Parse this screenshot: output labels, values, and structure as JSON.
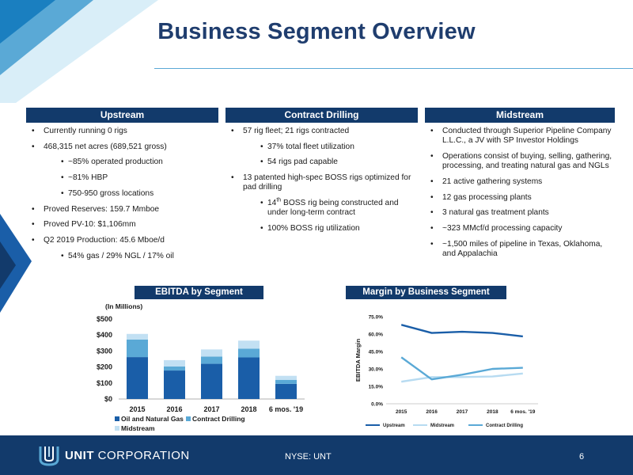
{
  "title": "Business Segment Overview",
  "colors": {
    "navy": "#123a6b",
    "accent": "#1a5ea8",
    "light": "#5aa9d6",
    "pale": "#b7dbf1"
  },
  "columns": [
    {
      "header": "Upstream",
      "bullets": [
        {
          "level": 1,
          "text": "Currently running 0 rigs"
        },
        {
          "level": 1,
          "text": "468,315 net acres (689,521 gross)"
        },
        {
          "level": 2,
          "text": "~85% operated production"
        },
        {
          "level": 2,
          "text": "~81% HBP"
        },
        {
          "level": 2,
          "text": "750-950 gross locations"
        },
        {
          "level": 1,
          "text": "Proved Reserves: 159.7 Mmboe"
        },
        {
          "level": 1,
          "text": "Proved PV-10: $1,106mm"
        },
        {
          "level": 1,
          "text": "Q2 2019 Production: 45.6 Mboe/d"
        },
        {
          "level": 2,
          "text": "54% gas / 29% NGL / 17% oil"
        }
      ]
    },
    {
      "header": "Contract Drilling",
      "bullets": [
        {
          "level": 1,
          "text": "57 rig fleet; 21 rigs contracted"
        },
        {
          "level": 2,
          "text": "37% total fleet utilization"
        },
        {
          "level": 2,
          "text": "54 rigs pad capable"
        },
        {
          "level": 1,
          "text": "13 patented high-spec BOSS rigs optimized for pad drilling"
        },
        {
          "level": 2,
          "pre": "14",
          "sup": "th",
          "text": " BOSS rig being constructed and under long-term contract"
        },
        {
          "level": 2,
          "text": "100% BOSS rig utilization"
        }
      ]
    },
    {
      "header": "Midstream",
      "bullets": [
        {
          "level": 1,
          "text": "Conducted through Superior Pipeline Company L.L.C., a JV with SP Investor Holdings"
        },
        {
          "level": 1,
          "text": "Operations consist of buying, selling, gathering, processing, and treating natural gas and NGLs"
        },
        {
          "level": 1,
          "text": "21 active gathering systems"
        },
        {
          "level": 1,
          "text": "12 gas processing plants"
        },
        {
          "level": 1,
          "text": "3 natural gas treatment plants"
        },
        {
          "level": 1,
          "text": "~323 MMcf/d processing capacity"
        },
        {
          "level": 1,
          "text": "~1,500 miles of pipeline in Texas, Oklahoma, and Appalachia"
        }
      ]
    }
  ],
  "chart_data": [
    {
      "type": "bar",
      "stacked": true,
      "title": "EBITDA by Segment",
      "subtitle": "(In Millions)",
      "categories": [
        "2015",
        "2016",
        "2017",
        "2018",
        "6 mos. '19"
      ],
      "yticks": [
        "$0",
        "$100",
        "$200",
        "$300",
        "$400",
        "$500"
      ],
      "ylim": [
        0,
        500
      ],
      "series": [
        {
          "name": "Oil and Natural Gas",
          "color": "#1a5ea8",
          "values": [
            262,
            178,
            220,
            260,
            95
          ]
        },
        {
          "name": "Contract Drilling",
          "color": "#5aa9d6",
          "values": [
            110,
            25,
            45,
            55,
            25
          ]
        },
        {
          "name": "Midstream",
          "color": "#c2e0f3",
          "values": [
            35,
            40,
            45,
            50,
            25
          ]
        }
      ],
      "legend_position": "bottom"
    },
    {
      "type": "line",
      "title": "Margin by Business Segment",
      "ylabel": "EBITDA Margin",
      "categories": [
        "2015",
        "2016",
        "2017",
        "2018",
        "6 mos. '19"
      ],
      "yticks": [
        "0.0%",
        "15.0%",
        "30.0%",
        "45.0%",
        "60.0%",
        "75.0%"
      ],
      "ylim": [
        0,
        75
      ],
      "series": [
        {
          "name": "Upstream",
          "color": "#1a5ea8",
          "values": [
            68,
            61,
            62,
            61,
            58
          ]
        },
        {
          "name": "Midstream",
          "color": "#b7dbf1",
          "values": [
            19,
            23,
            23,
            23.5,
            26
          ]
        },
        {
          "name": "Contract Drilling",
          "color": "#5aa9d6",
          "values": [
            40,
            21,
            25,
            30,
            31
          ]
        }
      ],
      "legend_position": "bottom"
    }
  ],
  "footer": {
    "logo_bold": "UNIT",
    "logo_light": " CORPORATION",
    "ticker": "NYSE: UNT",
    "page": "6"
  }
}
